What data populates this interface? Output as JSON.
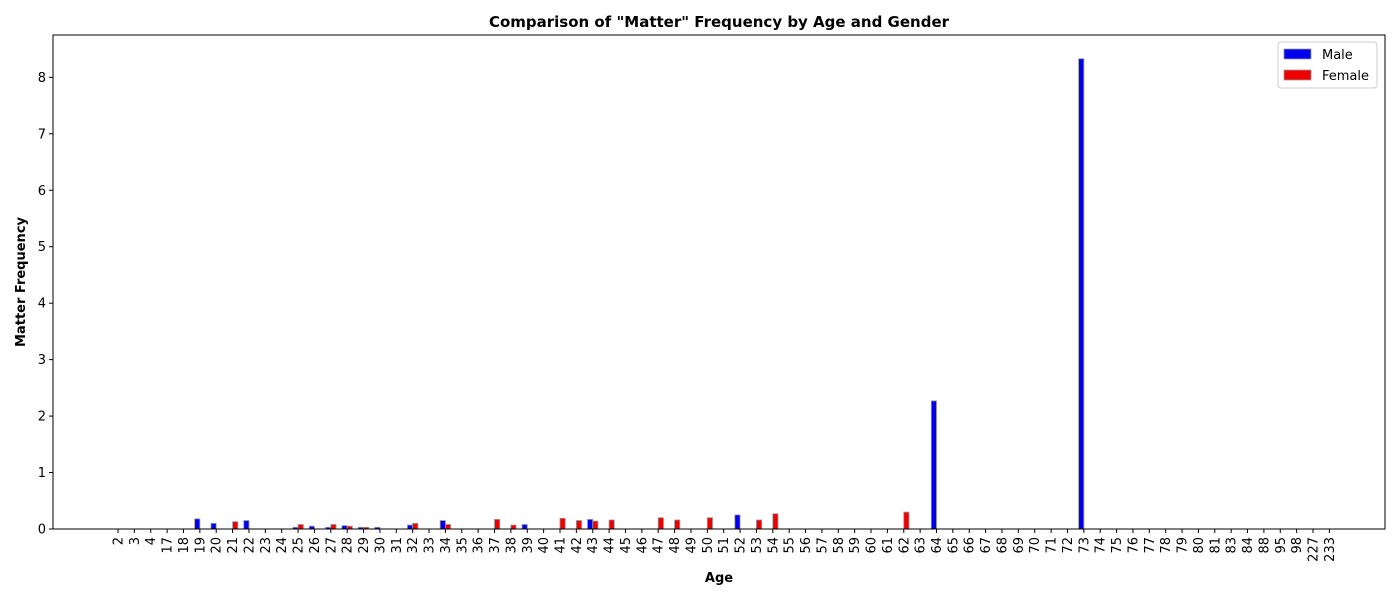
{
  "chart_data": {
    "type": "bar",
    "title": "Comparison of \"Matter\" Frequency by Age and Gender",
    "xlabel": "Age",
    "ylabel": "Matter Frequency",
    "ylim": [
      0,
      8.75
    ],
    "yticks": [
      0,
      1,
      2,
      3,
      4,
      5,
      6,
      7,
      8
    ],
    "grid": false,
    "legend_position": "top-right",
    "categories": [
      "2",
      "3",
      "4",
      "17",
      "18",
      "19",
      "20",
      "21",
      "22",
      "23",
      "24",
      "25",
      "26",
      "27",
      "28",
      "29",
      "30",
      "31",
      "32",
      "33",
      "34",
      "35",
      "36",
      "37",
      "38",
      "39",
      "40",
      "41",
      "42",
      "43",
      "44",
      "45",
      "46",
      "47",
      "48",
      "49",
      "50",
      "51",
      "52",
      "53",
      "54",
      "55",
      "56",
      "57",
      "58",
      "59",
      "60",
      "61",
      "62",
      "63",
      "64",
      "65",
      "66",
      "67",
      "68",
      "69",
      "70",
      "71",
      "72",
      "73",
      "74",
      "75",
      "76",
      "77",
      "78",
      "79",
      "80",
      "81",
      "83",
      "84",
      "88",
      "95",
      "98",
      "227",
      "233"
    ],
    "series": [
      {
        "name": "Male",
        "color": "#0000ee",
        "values": [
          0,
          0,
          0,
          0,
          0,
          0.18,
          0.1,
          0,
          0.15,
          0,
          0,
          0.03,
          0.05,
          0.03,
          0.06,
          0.03,
          0.03,
          0,
          0.07,
          0,
          0.15,
          0,
          0,
          0,
          0,
          0.08,
          0,
          0,
          0,
          0.17,
          0,
          0,
          0,
          0,
          0,
          0,
          0,
          0,
          0.25,
          0,
          0,
          0,
          0,
          0,
          0,
          0,
          0,
          0,
          0,
          0,
          2.27,
          0,
          0,
          0,
          0,
          0,
          0,
          0,
          0,
          8.33,
          0,
          0,
          0,
          0,
          0,
          0,
          0,
          0,
          0,
          0,
          0,
          0,
          0,
          0,
          0
        ]
      },
      {
        "name": "Female",
        "color": "#ee0000",
        "values": [
          0,
          0,
          0,
          0,
          0,
          0,
          0,
          0.13,
          0,
          0,
          0,
          0.08,
          0,
          0.08,
          0.05,
          0.03,
          0,
          0,
          0.1,
          0,
          0.08,
          0,
          0,
          0.17,
          0.07,
          0,
          0,
          0.19,
          0.15,
          0.14,
          0.16,
          0,
          0,
          0.2,
          0.16,
          0,
          0.2,
          0,
          0,
          0.16,
          0.27,
          0,
          0,
          0,
          0,
          0,
          0,
          0,
          0.3,
          0,
          0,
          0,
          0,
          0,
          0,
          0,
          0,
          0,
          0,
          0,
          0,
          0,
          0,
          0,
          0,
          0,
          0,
          0,
          0,
          0,
          0,
          0,
          0,
          0,
          0
        ]
      }
    ]
  }
}
